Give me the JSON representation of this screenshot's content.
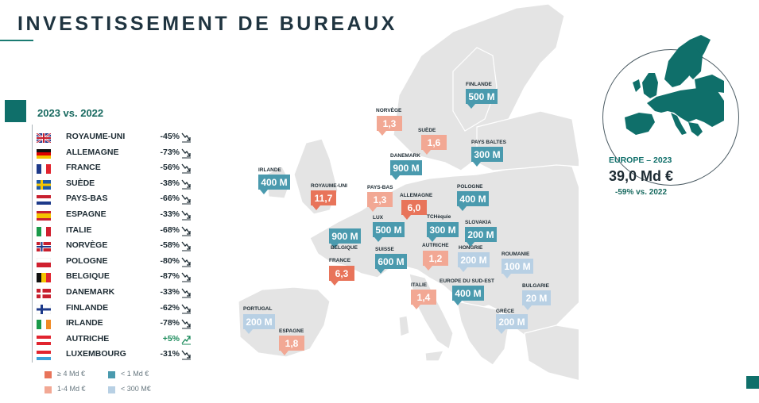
{
  "title": "INVESTISSEMENT DE BUREAUX",
  "subtitle": "2023 vs. 2022",
  "countries": [
    {
      "name": "ROYAUME-UNI",
      "change": "-45%",
      "flag": "uk",
      "trend": "down"
    },
    {
      "name": "ALLEMAGNE",
      "change": "-73%",
      "flag": "de",
      "trend": "down"
    },
    {
      "name": "FRANCE",
      "change": "-56%",
      "flag": "fr",
      "trend": "down"
    },
    {
      "name": "SUÈDE",
      "change": "-38%",
      "flag": "se",
      "trend": "down"
    },
    {
      "name": "PAYS-BAS",
      "change": "-66%",
      "flag": "nl",
      "trend": "down"
    },
    {
      "name": "ESPAGNE",
      "change": "-33%",
      "flag": "es",
      "trend": "down"
    },
    {
      "name": "ITALIE",
      "change": "-68%",
      "flag": "it",
      "trend": "down"
    },
    {
      "name": "NORVÈGE",
      "change": "-58%",
      "flag": "no",
      "trend": "down"
    },
    {
      "name": "POLOGNE",
      "change": "-80%",
      "flag": "pl",
      "trend": "down"
    },
    {
      "name": "BELGIQUE",
      "change": "-87%",
      "flag": "be",
      "trend": "down"
    },
    {
      "name": "DANEMARK",
      "change": "-33%",
      "flag": "dk",
      "trend": "down"
    },
    {
      "name": "FINLANDE",
      "change": "-62%",
      "flag": "fi",
      "trend": "down"
    },
    {
      "name": "IRLANDE",
      "change": "-78%",
      "flag": "ie",
      "trend": "down"
    },
    {
      "name": "AUTRICHE",
      "change": "+5%",
      "flag": "at",
      "trend": "up"
    },
    {
      "name": "LUXEMBOURG",
      "change": "-31%",
      "flag": "lu",
      "trend": "down"
    }
  ],
  "legend": [
    {
      "label": "≥ 4 Md €",
      "color": "#e8745a"
    },
    {
      "label": "< 1 Md €",
      "color": "#4a9aae"
    },
    {
      "label": "1-4 Md €",
      "color": "#f2a894"
    },
    {
      "label": "< 300 M€",
      "color": "#b8d0e4"
    }
  ],
  "markers": [
    {
      "label": "FINLANDE",
      "value": "500 M",
      "tier": "lt1"
    },
    {
      "label": "NORVÈGE",
      "value": "1,3",
      "tier": "mid"
    },
    {
      "label": "SUÈDE",
      "value": "1,6",
      "tier": "mid"
    },
    {
      "label": "PAYS BALTES",
      "value": "300 M",
      "tier": "lt1"
    },
    {
      "label": "DANEMARK",
      "value": "900 M",
      "tier": "lt1"
    },
    {
      "label": "IRLANDE",
      "value": "400 M",
      "tier": "lt1"
    },
    {
      "label": "ROYAUME-UNI",
      "value": "11,7",
      "tier": "high"
    },
    {
      "label": "PAYS-BAS",
      "value": "1,3",
      "tier": "mid"
    },
    {
      "label": "ALLEMAGNE",
      "value": "6,0",
      "tier": "high"
    },
    {
      "label": "POLOGNE",
      "value": "400 M",
      "tier": "lt1"
    },
    {
      "label": "LUX",
      "value": "500 M",
      "tier": "lt1"
    },
    {
      "label": "TCHèquie",
      "value": "300 M",
      "tier": "lt1"
    },
    {
      "label": "SLOVAKIA",
      "value": "200 M",
      "tier": "lt1"
    },
    {
      "label": "",
      "value": "900 M",
      "tier": "lt1"
    },
    {
      "label": "BELGIQUE",
      "value": "",
      "tier": "none"
    },
    {
      "label": "SUISSE",
      "value": "600 M",
      "tier": "lt1"
    },
    {
      "label": "AUTRICHE",
      "value": "1,2",
      "tier": "mid"
    },
    {
      "label": "HONGRIE",
      "value": "200 M",
      "tier": "low"
    },
    {
      "label": "ROUMANIE",
      "value": "100 M",
      "tier": "low"
    },
    {
      "label": "FRANCE",
      "value": "6,3",
      "tier": "high"
    },
    {
      "label": "ITALIE",
      "value": "1,4",
      "tier": "mid"
    },
    {
      "label": "EUROPE DU SUD-EST",
      "value": "400 M",
      "tier": "lt1"
    },
    {
      "label": "BULGARIE",
      "value": "20 M",
      "tier": "low"
    },
    {
      "label": "PORTUGAL",
      "value": "200 M",
      "tier": "low"
    },
    {
      "label": "GRÈCE",
      "value": "200 M",
      "tier": "low"
    },
    {
      "label": "ESPAGNE",
      "value": "1,8",
      "tier": "mid"
    }
  ],
  "tier_colors": {
    "high": "#e8745a",
    "mid": "#f2a894",
    "lt1": "#4a9aae",
    "low": "#b8d0e4"
  },
  "europe": {
    "title": "EUROPE – 2023",
    "value": "39,0 Md €",
    "change": "-59% vs. 2022"
  },
  "colors": {
    "accent": "#0f6f6a",
    "map": "#e3e3e3"
  }
}
